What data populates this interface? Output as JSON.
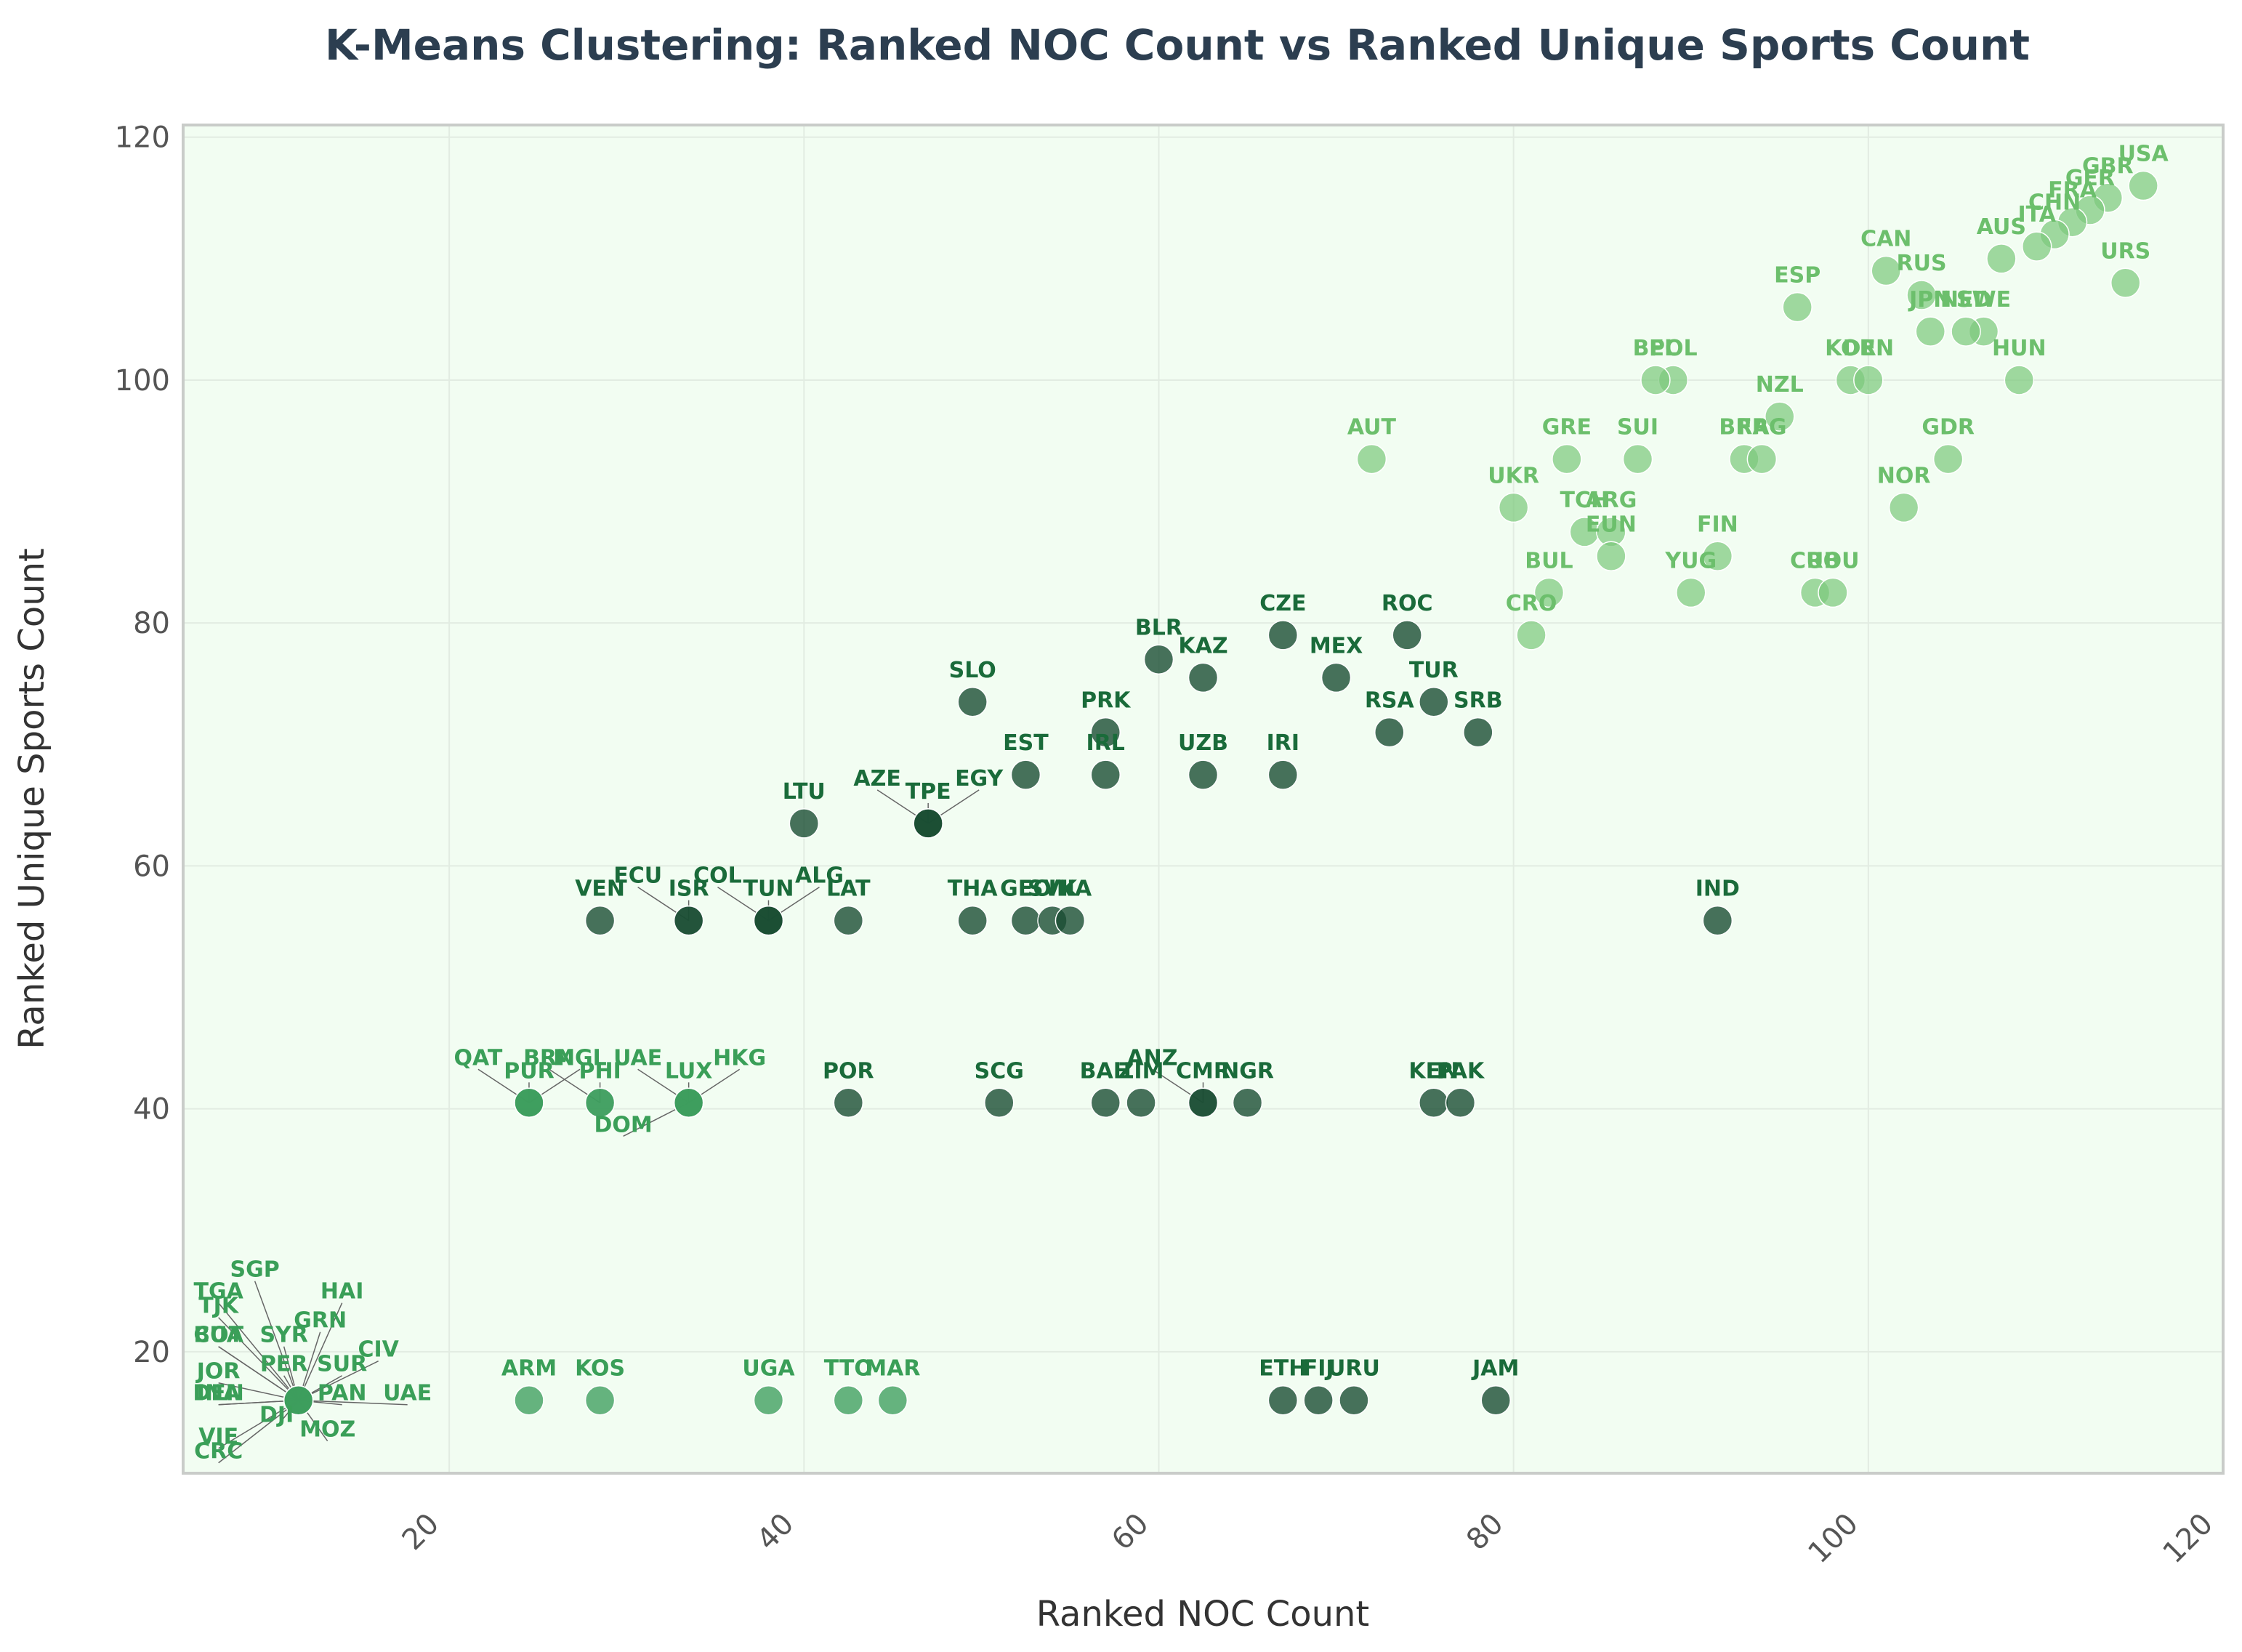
{
  "chart_data": {
    "type": "scatter",
    "title": "K-Means Clustering: Ranked NOC Count vs Ranked Unique Sports Count",
    "xlabel": "Ranked NOC Count",
    "ylabel": "Ranked Unique Sports Count",
    "xlim": [
      5,
      120
    ],
    "ylim": [
      10,
      121
    ],
    "xticks": [
      20,
      40,
      60,
      80,
      100,
      120
    ],
    "yticks": [
      20,
      40,
      60,
      80,
      100,
      120
    ],
    "grid": true,
    "legend": "none",
    "colors": {
      "background": "#f2fdf2",
      "cluster_high": "#7dc97d",
      "cluster_mid": "#1a4d33",
      "cluster_low": "#3e9e5e",
      "label_high": "#6cbf6c",
      "label_mid": "#1a6b3a",
      "label_low": "#3a9f58"
    },
    "clusters": [
      {
        "name": "high",
        "points": [
          {
            "label": "USA",
            "x": 115.5,
            "y": 116
          },
          {
            "label": "GBR",
            "x": 113.5,
            "y": 115
          },
          {
            "label": "GER",
            "x": 112.5,
            "y": 114
          },
          {
            "label": "FRA",
            "x": 111.5,
            "y": 113
          },
          {
            "label": "CHN",
            "x": 110.5,
            "y": 112
          },
          {
            "label": "ITA",
            "x": 109.5,
            "y": 111
          },
          {
            "label": "AUS",
            "x": 107.5,
            "y": 110
          },
          {
            "label": "URS",
            "x": 114.5,
            "y": 108
          },
          {
            "label": "CAN",
            "x": 101,
            "y": 109
          },
          {
            "label": "RUS",
            "x": 103,
            "y": 107
          },
          {
            "label": "ESP",
            "x": 96,
            "y": 106
          },
          {
            "label": "SWE",
            "x": 106.5,
            "y": 104
          },
          {
            "label": "NED",
            "x": 105.5,
            "y": 104
          },
          {
            "label": "JPN",
            "x": 103.5,
            "y": 104
          },
          {
            "label": "POL",
            "x": 89,
            "y": 100
          },
          {
            "label": "BEL",
            "x": 88,
            "y": 100
          },
          {
            "label": "KOR",
            "x": 99,
            "y": 100
          },
          {
            "label": "DEN",
            "x": 100,
            "y": 100
          },
          {
            "label": "HUN",
            "x": 108.5,
            "y": 100
          },
          {
            "label": "NZL",
            "x": 95,
            "y": 97
          },
          {
            "label": "AUT",
            "x": 72,
            "y": 93.5
          },
          {
            "label": "GRE",
            "x": 83,
            "y": 93.5
          },
          {
            "label": "SUI",
            "x": 87,
            "y": 93.5
          },
          {
            "label": "BRA",
            "x": 93,
            "y": 93.5
          },
          {
            "label": "FRG",
            "x": 94,
            "y": 93.5
          },
          {
            "label": "GDR",
            "x": 104.5,
            "y": 93.5
          },
          {
            "label": "UKR",
            "x": 80,
            "y": 89.5
          },
          {
            "label": "NOR",
            "x": 102,
            "y": 89.5
          },
          {
            "label": "TCH",
            "x": 84,
            "y": 87.5
          },
          {
            "label": "ARG",
            "x": 85.5,
            "y": 87.5
          },
          {
            "label": "EUN",
            "x": 85.5,
            "y": 85.5
          },
          {
            "label": "FIN",
            "x": 91.5,
            "y": 85.5
          },
          {
            "label": "BUL",
            "x": 82,
            "y": 82.5
          },
          {
            "label": "YUG",
            "x": 90,
            "y": 82.5
          },
          {
            "label": "CUB",
            "x": 97,
            "y": 82.5
          },
          {
            "label": "ROU",
            "x": 98,
            "y": 82.5
          },
          {
            "label": "CRO",
            "x": 81,
            "y": 79
          }
        ]
      },
      {
        "name": "mid",
        "points": [
          {
            "label": "CZE",
            "x": 67,
            "y": 79
          },
          {
            "label": "ROC",
            "x": 74,
            "y": 79
          },
          {
            "label": "BLR",
            "x": 60,
            "y": 77
          },
          {
            "label": "KAZ",
            "x": 62.5,
            "y": 75.5
          },
          {
            "label": "MEX",
            "x": 70,
            "y": 75.5
          },
          {
            "label": "SLO",
            "x": 49.5,
            "y": 73.5
          },
          {
            "label": "TUR",
            "x": 75.5,
            "y": 73.5
          },
          {
            "label": "PRK",
            "x": 57,
            "y": 71
          },
          {
            "label": "RSA",
            "x": 73,
            "y": 71
          },
          {
            "label": "SRB",
            "x": 78,
            "y": 71
          },
          {
            "label": "EST",
            "x": 52.5,
            "y": 67.5
          },
          {
            "label": "IRL",
            "x": 57,
            "y": 67.5
          },
          {
            "label": "UZB",
            "x": 62.5,
            "y": 67.5
          },
          {
            "label": "IRI",
            "x": 67,
            "y": 67.5
          },
          {
            "label": "LTU",
            "x": 40,
            "y": 63.5
          },
          {
            "label": "TPE",
            "x": 47,
            "y": 63.5
          },
          {
            "label": "AZE",
            "x": 47,
            "y": 63.5
          },
          {
            "label": "EGY",
            "x": 47,
            "y": 63.5
          },
          {
            "label": "VEN",
            "x": 28.5,
            "y": 55.5
          },
          {
            "label": "ISR",
            "x": 33.5,
            "y": 55.5
          },
          {
            "label": "ECU",
            "x": 33.5,
            "y": 55.5
          },
          {
            "label": "TUN",
            "x": 38,
            "y": 55.5
          },
          {
            "label": "COL",
            "x": 38,
            "y": 55.5
          },
          {
            "label": "ALG",
            "x": 38,
            "y": 55.5
          },
          {
            "label": "LAT",
            "x": 42.5,
            "y": 55.5
          },
          {
            "label": "THA",
            "x": 49.5,
            "y": 55.5
          },
          {
            "label": "GEO",
            "x": 52.5,
            "y": 55.5
          },
          {
            "label": "SVK",
            "x": 54,
            "y": 55.5
          },
          {
            "label": "INA",
            "x": 55,
            "y": 55.5
          },
          {
            "label": "IND",
            "x": 91.5,
            "y": 55.5
          },
          {
            "label": "POR",
            "x": 42.5,
            "y": 40.5
          },
          {
            "label": "SCG",
            "x": 51,
            "y": 40.5
          },
          {
            "label": "BAH",
            "x": 57,
            "y": 40.5
          },
          {
            "label": "ZIM",
            "x": 59,
            "y": 40.5
          },
          {
            "label": "CMR",
            "x": 62.5,
            "y": 40.5
          },
          {
            "label": "ANZ",
            "x": 62.5,
            "y": 40.5
          },
          {
            "label": "NGR",
            "x": 65,
            "y": 40.5
          },
          {
            "label": "KEN",
            "x": 75.5,
            "y": 40.5
          },
          {
            "label": "PAK",
            "x": 77,
            "y": 40.5
          },
          {
            "label": "ETH",
            "x": 67,
            "y": 16
          },
          {
            "label": "FIJ",
            "x": 69,
            "y": 16
          },
          {
            "label": "URU",
            "x": 71,
            "y": 16
          },
          {
            "label": "JAM",
            "x": 79,
            "y": 16
          }
        ]
      },
      {
        "name": "low",
        "points": [
          {
            "label": "PUR",
            "x": 24.5,
            "y": 40.5
          },
          {
            "label": "QAT",
            "x": 24.5,
            "y": 40.5
          },
          {
            "label": "MGL",
            "x": 24.5,
            "y": 40.5
          },
          {
            "label": "PHI",
            "x": 28.5,
            "y": 40.5
          },
          {
            "label": "BRN",
            "x": 28.5,
            "y": 40.5
          },
          {
            "label": "LUX",
            "x": 33.5,
            "y": 40.5
          },
          {
            "label": "UAE",
            "x": 33.5,
            "y": 40.5
          },
          {
            "label": "HKG",
            "x": 33.5,
            "y": 40.5
          },
          {
            "label": "DOM",
            "x": 33.5,
            "y": 40.5
          },
          {
            "label": "ARM",
            "x": 24.5,
            "y": 16
          },
          {
            "label": "KOS",
            "x": 28.5,
            "y": 16
          },
          {
            "label": "UGA",
            "x": 38,
            "y": 16
          },
          {
            "label": "TTO",
            "x": 42.5,
            "y": 16
          },
          {
            "label": "MAR",
            "x": 45,
            "y": 16
          },
          {
            "label": "SGP",
            "x": 11.5,
            "y": 16
          },
          {
            "label": "HAI",
            "x": 11.5,
            "y": 16
          },
          {
            "label": "TJK",
            "x": 11.5,
            "y": 16
          },
          {
            "label": "TGA",
            "x": 11.5,
            "y": 16
          },
          {
            "label": "GRN",
            "x": 11.5,
            "y": 16
          },
          {
            "label": "SYR",
            "x": 11.5,
            "y": 16
          },
          {
            "label": "CIV",
            "x": 11.5,
            "y": 16
          },
          {
            "label": "BOT",
            "x": 11.5,
            "y": 16
          },
          {
            "label": "CUA",
            "x": 11.5,
            "y": 16
          },
          {
            "label": "SUR",
            "x": 11.5,
            "y": 16
          },
          {
            "label": "JOR",
            "x": 11.5,
            "y": 16
          },
          {
            "label": "PER",
            "x": 11.5,
            "y": 16
          },
          {
            "label": "PAN",
            "x": 11.5,
            "y": 16
          },
          {
            "label": "UAE",
            "x": 11.5,
            "y": 16
          },
          {
            "label": "DEN",
            "x": 11.5,
            "y": 16
          },
          {
            "label": "INA",
            "x": 11.5,
            "y": 16
          },
          {
            "label": "DJI",
            "x": 11.5,
            "y": 16
          },
          {
            "label": "VIE",
            "x": 11.5,
            "y": 16
          },
          {
            "label": "MOZ",
            "x": 11.5,
            "y": 16
          },
          {
            "label": "CRC",
            "x": 11.5,
            "y": 16
          }
        ]
      }
    ]
  }
}
